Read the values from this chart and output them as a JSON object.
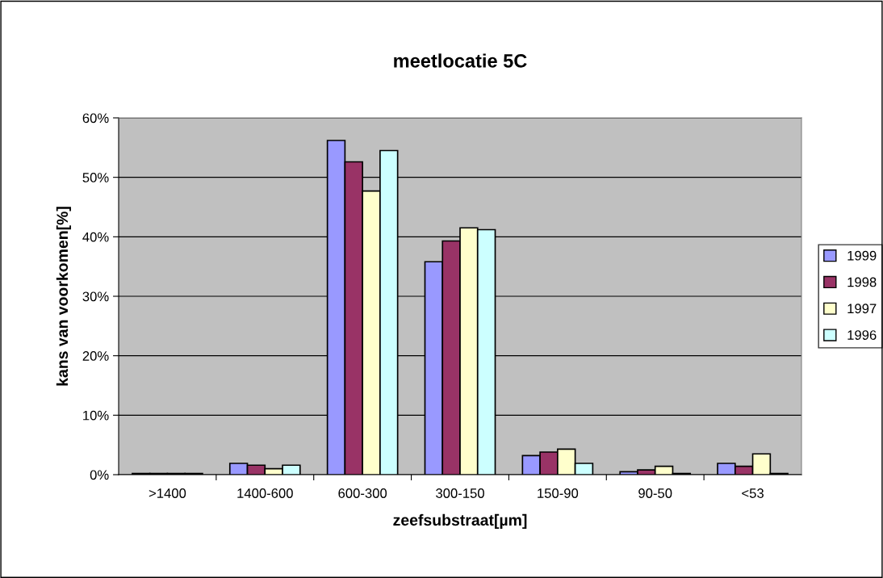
{
  "chart_data": {
    "type": "bar",
    "title": "meetlocatie 5C",
    "xlabel": "zeefsubstraat[µm]",
    "ylabel": "kans van voorkomen[%]",
    "categories": [
      ">1400",
      "1400-600",
      "600-300",
      "300-150",
      "150-90",
      "90-50",
      "<53"
    ],
    "series": [
      {
        "name": "1999",
        "color": "#9999ff",
        "values": [
          0.2,
          1.9,
          56.2,
          35.8,
          3.2,
          0.5,
          1.9
        ]
      },
      {
        "name": "1998",
        "color": "#993366",
        "values": [
          0.2,
          1.6,
          52.6,
          39.3,
          3.8,
          0.8,
          1.4
        ]
      },
      {
        "name": "1997",
        "color": "#ffffcc",
        "values": [
          0.2,
          1.0,
          47.7,
          41.5,
          4.3,
          1.4,
          3.5
        ]
      },
      {
        "name": "1996",
        "color": "#ccffff",
        "values": [
          0.2,
          1.6,
          54.5,
          41.2,
          1.9,
          0.2,
          0.2
        ]
      }
    ],
    "ylim": [
      0,
      60
    ],
    "yticks": [
      {
        "value": 0,
        "label": "0%"
      },
      {
        "value": 10,
        "label": "10%"
      },
      {
        "value": 20,
        "label": "20%"
      },
      {
        "value": 30,
        "label": "30%"
      },
      {
        "value": 40,
        "label": "40%"
      },
      {
        "value": 50,
        "label": "50%"
      },
      {
        "value": 60,
        "label": "60%"
      }
    ],
    "grid": "y",
    "legend": "right"
  }
}
